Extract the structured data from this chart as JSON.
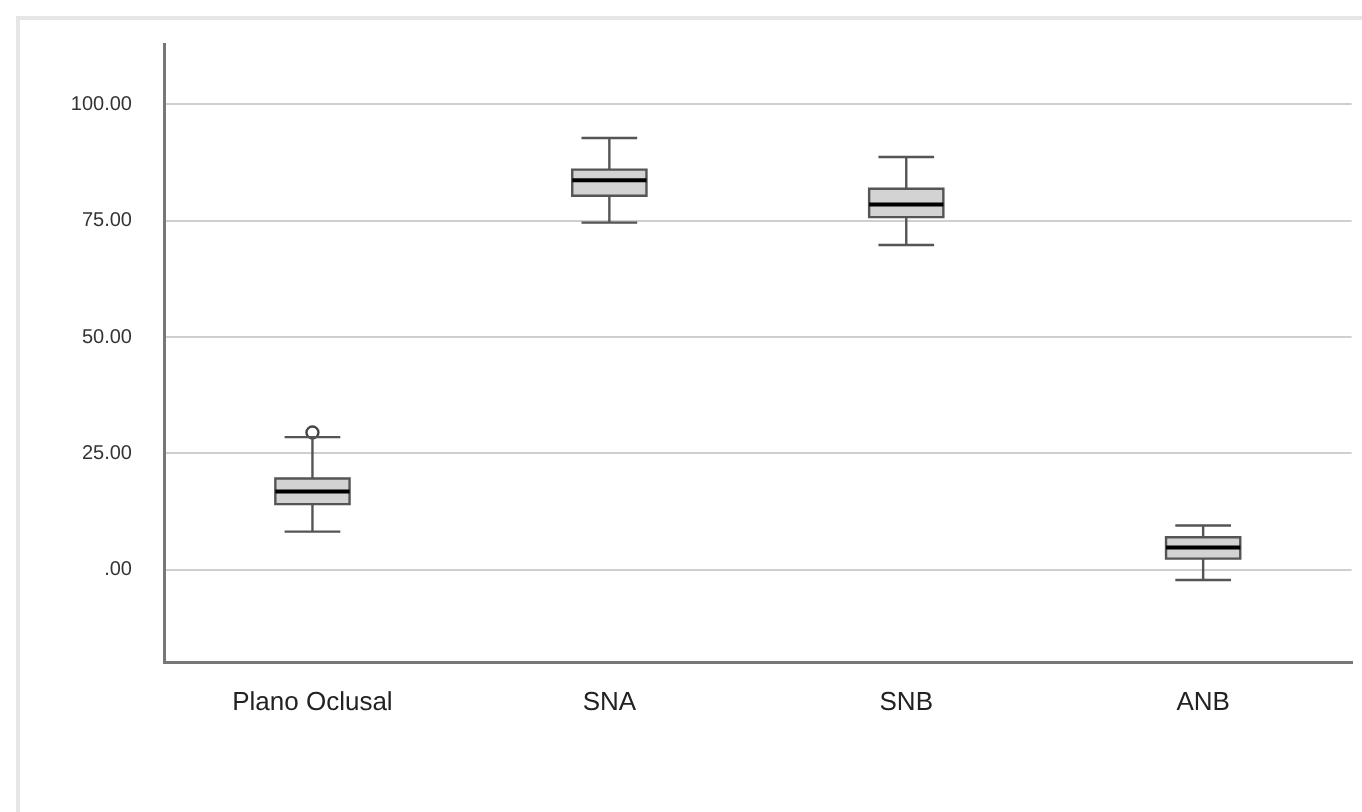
{
  "chart_data": {
    "type": "box",
    "categories": [
      "Plano Oclusal",
      "SNA",
      "SNB",
      "ANB"
    ],
    "boxes": [
      {
        "low": 8.2,
        "q1": 14.1,
        "median": 16.8,
        "q3": 19.6,
        "high": 28.5,
        "outliers": [
          29.5
        ]
      },
      {
        "low": 74.6,
        "q1": 80.4,
        "median": 83.7,
        "q3": 86.0,
        "high": 92.8
      },
      {
        "low": 69.8,
        "q1": 75.8,
        "median": 78.5,
        "q3": 81.9,
        "high": 88.7
      },
      {
        "low": -2.2,
        "q1": 2.4,
        "median": 4.8,
        "q3": 7.0,
        "high": 9.5
      }
    ],
    "color": "#d3d3d3",
    "ylim": [
      -20,
      113
    ],
    "yticks": [
      {
        "value": 0,
        "label": ".00"
      },
      {
        "value": 25,
        "label": "25.00"
      },
      {
        "value": 50,
        "label": "50.00"
      },
      {
        "value": 75,
        "label": "75.00"
      },
      {
        "value": 100,
        "label": "100.00"
      }
    ],
    "grid": "y",
    "legend": false
  }
}
